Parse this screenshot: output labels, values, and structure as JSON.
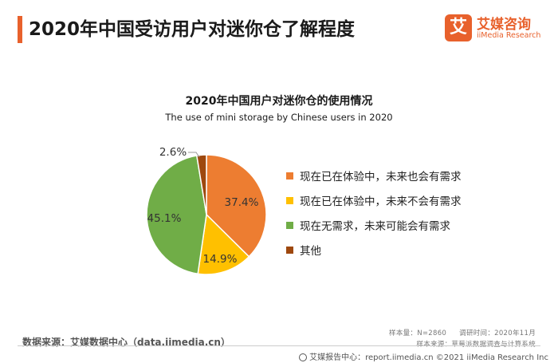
{
  "header": {
    "title": "2020年中国受访用户对迷你仓了解程度",
    "accent_color": "#e8612c"
  },
  "logo": {
    "mark": "艾",
    "name_cn": "艾媒咨询",
    "name_en": "iiMedia Research"
  },
  "chart_data": {
    "type": "pie",
    "title": "2020年中国用户对迷你仓的使用情况",
    "subtitle": "The use of mini storage by Chinese users in 2020",
    "unit": "%",
    "start_angle_deg": 0,
    "direction": "clockwise",
    "legend_position": "right",
    "slices": [
      {
        "label": "现在已在体验中，未来也会有需求",
        "value": 37.4,
        "value_label": "37.4%",
        "color": "#ED7D31"
      },
      {
        "label": "现在已在体验中，未来不会有需求",
        "value": 14.9,
        "value_label": "14.9%",
        "color": "#FFC000"
      },
      {
        "label": "现在无需求，未来可能会有需求",
        "value": 45.1,
        "value_label": "45.1%",
        "color": "#70AD47"
      },
      {
        "label": "其他",
        "value": 2.6,
        "value_label": "2.6%",
        "color": "#9E480E"
      }
    ]
  },
  "footer": {
    "source": "数据来源：艾媒数据中心（data.iimedia.cn）",
    "sample_size": "样本量：N=2860",
    "survey_time": "调研时间：2020年11月",
    "sample_source": "样本来源：草莓派数据调查与计算系统",
    "report_site": "艾媒报告中心：report.iimedia.cn  ©2021  iiMedia Research  Inc"
  }
}
